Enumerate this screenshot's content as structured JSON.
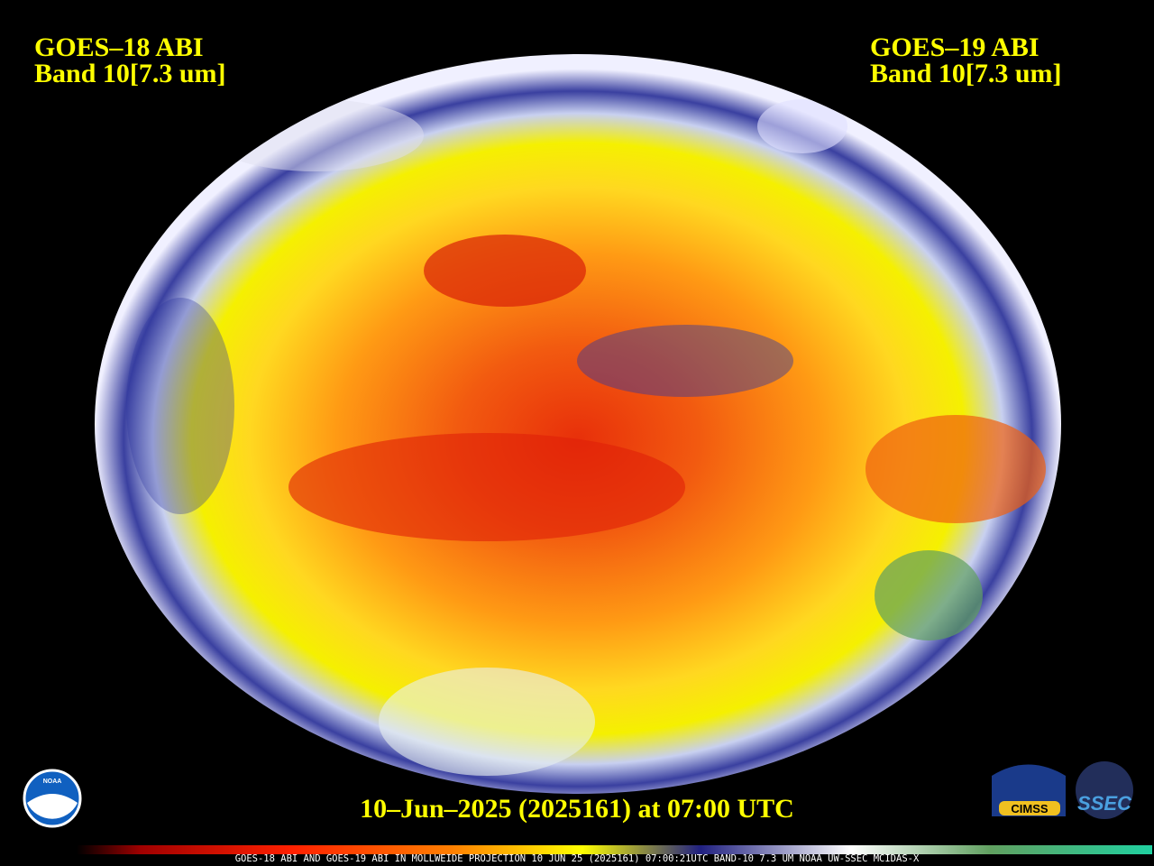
{
  "header": {
    "left": {
      "satellite": "GOES–18 ABI",
      "band": "Band 10[7.3 um]"
    },
    "right": {
      "satellite": "GOES–19 ABI",
      "band": "Band 10[7.3 um]"
    }
  },
  "timestamp": "10–Jun–2025 (2025161) at 07:00 UTC",
  "logos": {
    "noaa": "NOAA",
    "cimss": "CIMSS",
    "ssec": "SSEC"
  },
  "footer": "GOES-18 ABI AND GOES-19 ABI IN MOLLWEIDE PROJECTION 10 JUN 25 (2025161) 07:00:21UTC BAND-10 7.3 UM NOAA UW-SSEC MCIDAS-X"
}
